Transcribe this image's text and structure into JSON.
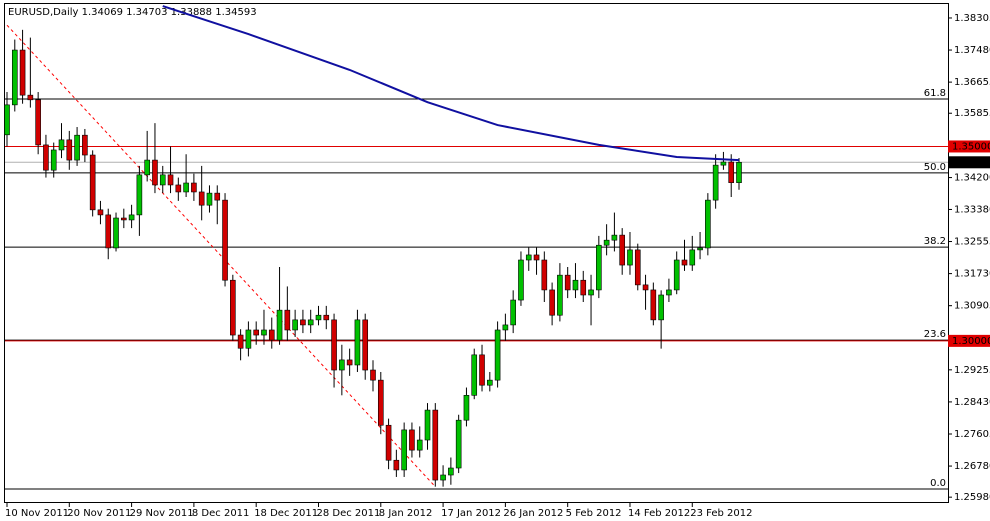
{
  "chart_data": {
    "type": "candlestick",
    "title": "EURUSD,Daily  1.34069 1.34703 1.33888 1.34593",
    "categories": [
      "10 Nov 2011",
      null,
      null,
      null,
      null,
      null,
      null,
      null,
      "20 Nov 2011",
      null,
      null,
      null,
      null,
      null,
      null,
      null,
      "29 Nov 2011",
      null,
      null,
      null,
      null,
      null,
      null,
      null,
      "8 Dec 2011",
      null,
      null,
      null,
      null,
      null,
      null,
      null,
      "18 Dec 2011",
      null,
      null,
      null,
      null,
      null,
      null,
      null,
      "28 Dec 2011",
      null,
      null,
      null,
      null,
      null,
      null,
      null,
      "8 Jan 2012",
      null,
      null,
      null,
      null,
      null,
      null,
      null,
      "17 Jan 2012",
      null,
      null,
      null,
      null,
      null,
      null,
      null,
      "26 Jan 2012",
      null,
      null,
      null,
      null,
      null,
      null,
      null,
      "5 Feb 2012",
      null,
      null,
      null,
      null,
      null,
      null,
      null,
      "14 Feb 2012",
      null,
      null,
      null,
      null,
      null,
      null,
      null,
      "23 Feb 2012",
      null,
      null,
      null,
      null,
      null,
      null
    ],
    "open": [
      1.353,
      1.3607,
      1.3748,
      1.3632,
      1.362,
      1.3504,
      1.3439,
      1.3491,
      1.3517,
      1.3465,
      1.3529,
      1.3478,
      1.3337,
      1.3324,
      1.3239,
      1.3316,
      1.3311,
      1.3324,
      1.3427,
      1.3465,
      1.3401,
      1.3427,
      1.3401,
      1.3383,
      1.3406,
      1.3383,
      1.3349,
      1.338,
      1.3362,
      1.3156,
      1.3015,
      1.2981,
      1.3028,
      1.3015,
      1.3028,
      1.3002,
      1.3079,
      1.3028,
      1.3054,
      1.3041,
      1.3054,
      1.3066,
      1.3054,
      1.2925,
      1.2951,
      1.2938,
      1.3054,
      1.2925,
      1.2899,
      1.2783,
      1.2693,
      1.2668,
      1.2771,
      1.2719,
      1.2745,
      1.2822,
      1.2642,
      1.2655,
      1.2673,
      1.2796,
      1.286,
      1.2964,
      1.2886,
      1.2899,
      1.3028,
      1.3041,
      1.3105,
      1.3208,
      1.3221,
      1.3208,
      1.3131,
      1.3066,
      1.3169,
      1.3131,
      1.3156,
      1.3118,
      1.3131,
      1.3246,
      1.3259,
      1.3272,
      1.3195,
      1.3234,
      1.3144,
      1.3131,
      1.3054,
      1.3118,
      1.3131,
      1.3208,
      1.3195,
      1.3234,
      1.3239,
      1.3362,
      1.3452,
      1.346,
      1.34069
    ],
    "high": [
      1.364,
      1.3775,
      1.38,
      1.378,
      1.364,
      1.353,
      1.351,
      1.356,
      1.354,
      1.355,
      1.3545,
      1.349,
      1.336,
      1.334,
      1.333,
      1.334,
      1.335,
      1.345,
      1.354,
      1.356,
      1.345,
      1.35,
      1.342,
      1.348,
      1.343,
      1.345,
      1.34,
      1.34,
      1.338,
      1.317,
      1.303,
      1.305,
      1.305,
      1.308,
      1.306,
      1.319,
      1.314,
      1.308,
      1.308,
      1.308,
      1.309,
      1.309,
      1.307,
      1.299,
      1.298,
      1.308,
      1.307,
      1.295,
      1.292,
      1.28,
      1.272,
      1.279,
      1.279,
      1.278,
      1.284,
      1.284,
      1.268,
      1.27,
      1.281,
      1.288,
      1.298,
      1.299,
      1.292,
      1.305,
      1.307,
      1.313,
      1.323,
      1.324,
      1.324,
      1.323,
      1.315,
      1.32,
      1.319,
      1.32,
      1.318,
      1.317,
      1.327,
      1.33,
      1.333,
      1.329,
      1.328,
      1.325,
      1.317,
      1.315,
      1.313,
      1.316,
      1.323,
      1.326,
      1.327,
      1.328,
      1.338,
      1.348,
      1.3486,
      1.348,
      1.34703
    ],
    "low": [
      1.35,
      1.359,
      1.361,
      1.36,
      1.348,
      1.342,
      1.342,
      1.347,
      1.344,
      1.345,
      1.346,
      1.332,
      1.33,
      1.321,
      1.323,
      1.329,
      1.329,
      1.327,
      1.341,
      1.338,
      1.338,
      1.338,
      1.336,
      1.337,
      1.336,
      1.331,
      1.333,
      1.33,
      1.314,
      1.3,
      1.295,
      1.296,
      1.299,
      1.299,
      1.298,
      1.299,
      1.3,
      1.301,
      1.302,
      1.302,
      1.304,
      1.303,
      1.288,
      1.286,
      1.291,
      1.292,
      1.29,
      1.287,
      1.276,
      1.267,
      1.265,
      1.265,
      1.27,
      1.27,
      1.272,
      1.2625,
      1.2625,
      1.263,
      1.266,
      1.278,
      1.285,
      1.287,
      1.287,
      1.288,
      1.3,
      1.302,
      1.309,
      1.318,
      1.317,
      1.31,
      1.304,
      1.305,
      1.311,
      1.311,
      1.31,
      1.304,
      1.311,
      1.322,
      1.323,
      1.317,
      1.317,
      1.313,
      1.308,
      1.304,
      1.298,
      1.31,
      1.312,
      1.318,
      1.318,
      1.321,
      1.322,
      1.334,
      1.344,
      1.337,
      1.33888
    ],
    "close": [
      1.3607,
      1.3748,
      1.3632,
      1.362,
      1.3504,
      1.3439,
      1.3491,
      1.3517,
      1.3465,
      1.3529,
      1.3478,
      1.3337,
      1.3324,
      1.3239,
      1.3316,
      1.3311,
      1.3324,
      1.3427,
      1.3465,
      1.3401,
      1.3427,
      1.3401,
      1.3383,
      1.3406,
      1.3383,
      1.3349,
      1.338,
      1.3362,
      1.3156,
      1.3015,
      1.2981,
      1.3028,
      1.3015,
      1.3028,
      1.3002,
      1.3079,
      1.3028,
      1.3054,
      1.3041,
      1.3054,
      1.3066,
      1.3054,
      1.2925,
      1.2951,
      1.2938,
      1.3054,
      1.2925,
      1.2899,
      1.2783,
      1.2693,
      1.2668,
      1.2771,
      1.2719,
      1.2745,
      1.2822,
      1.2642,
      1.2655,
      1.2673,
      1.2796,
      1.286,
      1.2964,
      1.2886,
      1.2899,
      1.3028,
      1.3041,
      1.3105,
      1.3208,
      1.3221,
      1.3208,
      1.3131,
      1.3066,
      1.3169,
      1.3131,
      1.3156,
      1.3118,
      1.3131,
      1.3246,
      1.3259,
      1.3272,
      1.3195,
      1.3234,
      1.3144,
      1.3131,
      1.3054,
      1.3118,
      1.3131,
      1.3208,
      1.3195,
      1.3234,
      1.3239,
      1.3362,
      1.3452,
      1.346,
      1.34069,
      1.34593
    ],
    "colors": {
      "up": "#00c000",
      "down": "#d00000",
      "wick": "#000000"
    },
    "ylim": [
      1.2583,
      1.3869
    ],
    "yticks": [
      1.38305,
      {
        "value": 1.3748,
        "label": "1.37480"
      },
      1.36655,
      1.35855,
      {
        "value": 1.342,
        "label": "1.34200"
      },
      {
        "value": 1.3338,
        "label": "1.33380"
      },
      1.32555,
      {
        "value": 1.3173,
        "label": "1.31730"
      },
      1.30905,
      1.29255,
      {
        "value": 1.2843,
        "label": "1.28430"
      },
      1.27605,
      {
        "value": 1.2678,
        "label": "1.26780"
      },
      {
        "value": 1.2598,
        "label": "1.25980"
      }
    ],
    "moving_average": {
      "color": "#1010a0",
      "x": [
        20,
        31,
        44,
        54,
        63,
        76,
        86,
        94
      ],
      "values": [
        1.3861,
        1.3789,
        1.3697,
        1.3614,
        1.3555,
        1.3504,
        1.3473,
        1.3465
      ]
    },
    "fib_levels": [
      {
        "label": "61.8",
        "value": 1.3622
      },
      {
        "label": "50.0",
        "value": 1.3432
      },
      {
        "label": "38.2",
        "value": 1.3241
      },
      {
        "label": "23.6",
        "value": 1.3002
      },
      {
        "label": "0.0",
        "value": 1.2619
      }
    ],
    "fib_trendline": {
      "color": "#ff0000",
      "x": [
        0,
        55
      ],
      "values": [
        1.3812,
        1.2625
      ]
    },
    "hlines": [
      {
        "value": 1.35,
        "label": "1.35000",
        "color": "#e00000"
      },
      {
        "value": 1.3,
        "label": "1.30000",
        "color": "#e00000"
      }
    ],
    "last_price": 1.34593
  }
}
